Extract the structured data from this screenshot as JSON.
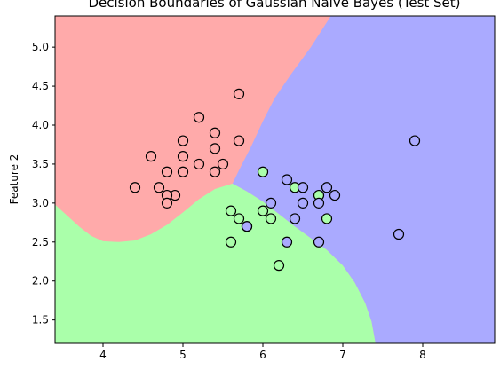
{
  "chart_data": {
    "type": "scatter",
    "title": "Decision Boundaries of Gaussian Naive Bayes (Test Set)",
    "xlabel": "",
    "ylabel": "Feature 2",
    "xlim": [
      3.4,
      8.9
    ],
    "ylim": [
      1.2,
      5.4
    ],
    "x_ticks": [
      "4",
      "5",
      "6",
      "7",
      "8"
    ],
    "y_ticks": [
      "1.5",
      "2.0",
      "2.5",
      "3.0",
      "3.5",
      "4.0",
      "4.5",
      "5.0"
    ],
    "grid": false,
    "region_colors": {
      "class_0": "#ffaaaa",
      "class_1": "#aaffaa",
      "class_2": "#aaaaff"
    },
    "point_edge_color": "#000000",
    "series": [
      {
        "class": "class_0",
        "color": "#ffaaaa",
        "x": [
          5.7,
          5.2,
          5.0,
          5.4,
          5.7,
          4.6,
          5.4,
          5.0,
          5.2,
          5.5,
          4.8,
          5.0,
          5.4,
          4.4,
          4.7,
          4.9,
          4.8,
          4.8
        ],
        "y": [
          4.4,
          4.1,
          3.8,
          3.9,
          3.8,
          3.6,
          3.7,
          3.6,
          3.5,
          3.5,
          3.4,
          3.4,
          3.4,
          3.2,
          3.2,
          3.1,
          3.1,
          3.0
        ]
      },
      {
        "class": "class_1",
        "color": "#aaffaa",
        "x": [
          6.0,
          6.4,
          6.7,
          6.0,
          5.6,
          5.7,
          6.1,
          6.8,
          5.8,
          5.6,
          6.2
        ],
        "y": [
          3.4,
          3.2,
          3.1,
          2.9,
          2.9,
          2.8,
          2.8,
          2.8,
          2.7,
          2.5,
          2.2
        ]
      },
      {
        "class": "class_2",
        "color": "#aaaaff",
        "x": [
          7.9,
          6.3,
          6.5,
          6.8,
          6.9,
          6.1,
          6.5,
          6.7,
          6.4,
          5.8,
          7.7,
          6.3,
          6.7
        ],
        "y": [
          3.8,
          3.3,
          3.2,
          3.2,
          3.1,
          3.0,
          3.0,
          3.0,
          2.8,
          2.7,
          2.6,
          2.5,
          2.5
        ]
      }
    ]
  }
}
